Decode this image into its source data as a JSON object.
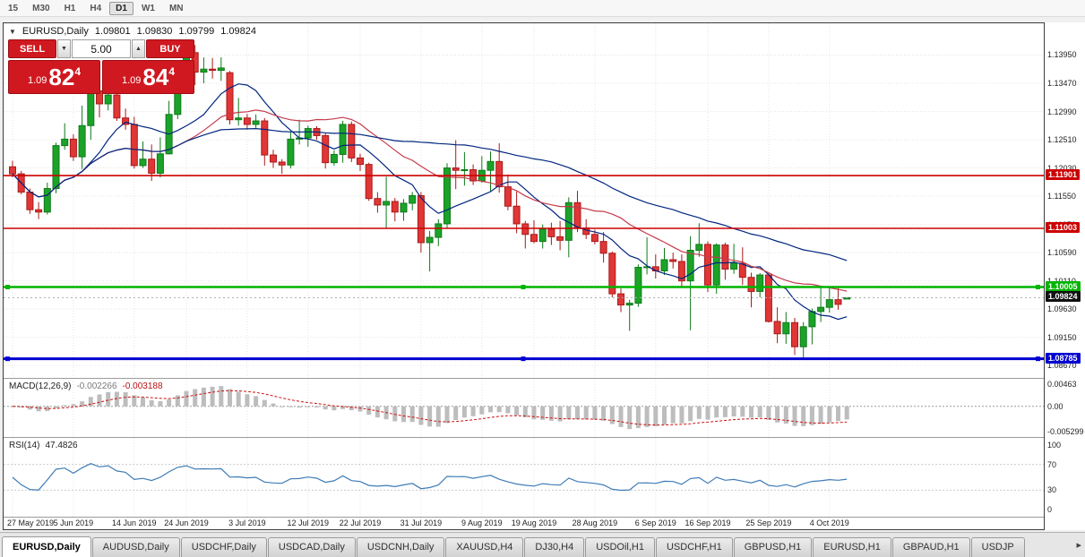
{
  "toolbar": {
    "timeframes": [
      "15",
      "M30",
      "H1",
      "H4",
      "D1",
      "W1",
      "MN"
    ],
    "active": "D1"
  },
  "header": {
    "icon": "▼",
    "symbol": "EURUSD,Daily",
    "open": "1.09801",
    "high": "1.09830",
    "low": "1.09799",
    "close": "1.09824"
  },
  "trade_panel": {
    "sell_label": "SELL",
    "buy_label": "BUY",
    "volume": "5.00",
    "spin_down": "▼",
    "spin_up": "▲",
    "sell_price": {
      "prefix": "1.09",
      "big": "82",
      "sup": "4"
    },
    "buy_price": {
      "prefix": "1.09",
      "big": "84",
      "sup": "4"
    }
  },
  "indicators": {
    "macd": {
      "label": "MACD(12,26,9)",
      "main": "-0.002266",
      "signal": "-0.003188"
    },
    "rsi": {
      "label": "RSI(14)",
      "value": "47.4826"
    }
  },
  "tabs": {
    "items": [
      "EURUSD,Daily",
      "AUDUSD,Daily",
      "USDCHF,Daily",
      "USDCAD,Daily",
      "USDCNH,Daily",
      "XAUUSD,H4",
      "DJ30,H4",
      "USDOil,H1",
      "USDCHF,H1",
      "GBPUSD,H1",
      "EURUSD,H1",
      "GBPAUD,H1",
      "USDJP"
    ],
    "active_index": 0,
    "scroll_arrow": "▸"
  },
  "chart_data": [
    {
      "type": "candlestick",
      "title": "EURUSD,Daily",
      "y_axis": {
        "max": 1.1449,
        "min": 1.0846,
        "ticks": [
          "1.13950",
          "1.13470",
          "1.12990",
          "1.12510",
          "1.12030",
          "1.11550",
          "1.11070",
          "1.10590",
          "1.10110",
          "1.09630",
          "1.09150",
          "1.08670"
        ]
      },
      "x_ticks": [
        {
          "label": "27 May 2019",
          "i": 0
        },
        {
          "label": "5 Jun 2019",
          "i": 7
        },
        {
          "label": "14 Jun 2019",
          "i": 14
        },
        {
          "label": "24 Jun 2019",
          "i": 20
        },
        {
          "label": "3 Jul 2019",
          "i": 27
        },
        {
          "label": "12 Jul 2019",
          "i": 34
        },
        {
          "label": "22 Jul 2019",
          "i": 40
        },
        {
          "label": "31 Jul 2019",
          "i": 47
        },
        {
          "label": "9 Aug 2019",
          "i": 54
        },
        {
          "label": "19 Aug 2019",
          "i": 60
        },
        {
          "label": "28 Aug 2019",
          "i": 67
        },
        {
          "label": "6 Sep 2019",
          "i": 74
        },
        {
          "label": "16 Sep 2019",
          "i": 80
        },
        {
          "label": "25 Sep 2019",
          "i": 87
        },
        {
          "label": "4 Oct 2019",
          "i": 94
        }
      ],
      "candles": [
        [
          1.1205,
          1.1215,
          1.1187,
          1.1193
        ],
        [
          1.1193,
          1.1198,
          1.1158,
          1.1162
        ],
        [
          1.1162,
          1.1168,
          1.1125,
          1.1132
        ],
        [
          1.1132,
          1.1145,
          1.1116,
          1.1128
        ],
        [
          1.1128,
          1.1178,
          1.1124,
          1.1168
        ],
        [
          1.1168,
          1.1246,
          1.116,
          1.1241
        ],
        [
          1.1241,
          1.1279,
          1.1234,
          1.1252
        ],
        [
          1.1252,
          1.126,
          1.1215,
          1.1222
        ],
        [
          1.1222,
          1.1309,
          1.1201,
          1.1275
        ],
        [
          1.1275,
          1.1348,
          1.1251,
          1.1334
        ],
        [
          1.1334,
          1.1335,
          1.1289,
          1.1312
        ],
        [
          1.1312,
          1.1338,
          1.1301,
          1.1327
        ],
        [
          1.1327,
          1.1344,
          1.1283,
          1.1288
        ],
        [
          1.1288,
          1.1304,
          1.1268,
          1.1277
        ],
        [
          1.1277,
          1.129,
          1.1202,
          1.1207
        ],
        [
          1.1207,
          1.1248,
          1.1203,
          1.1218
        ],
        [
          1.1218,
          1.1243,
          1.1181,
          1.1194
        ],
        [
          1.1194,
          1.1255,
          1.1187,
          1.1227
        ],
        [
          1.1227,
          1.1317,
          1.1226,
          1.1294
        ],
        [
          1.1294,
          1.1378,
          1.1286,
          1.1368
        ],
        [
          1.1368,
          1.1406,
          1.1362,
          1.1399
        ],
        [
          1.1399,
          1.1412,
          1.1344,
          1.1366
        ],
        [
          1.1366,
          1.1391,
          1.1347,
          1.1371
        ],
        [
          1.1371,
          1.139,
          1.1355,
          1.1369
        ],
        [
          1.1369,
          1.1391,
          1.1351,
          1.1373
        ],
        [
          1.1365,
          1.1368,
          1.1277,
          1.1285
        ],
        [
          1.1285,
          1.1322,
          1.1275,
          1.1288
        ],
        [
          1.1288,
          1.1295,
          1.1268,
          1.1277
        ],
        [
          1.1277,
          1.1294,
          1.1271,
          1.1283
        ],
        [
          1.1283,
          1.1288,
          1.1207,
          1.1225
        ],
        [
          1.1225,
          1.1234,
          1.1203,
          1.1213
        ],
        [
          1.1213,
          1.1218,
          1.1193,
          1.1208
        ],
        [
          1.1208,
          1.1264,
          1.1202,
          1.1252
        ],
        [
          1.1252,
          1.1285,
          1.1243,
          1.1254
        ],
        [
          1.1254,
          1.1275,
          1.1239,
          1.127
        ],
        [
          1.127,
          1.1274,
          1.1251,
          1.1258
        ],
        [
          1.1258,
          1.1262,
          1.1202,
          1.1212
        ],
        [
          1.1212,
          1.1233,
          1.1207,
          1.1226
        ],
        [
          1.1226,
          1.1283,
          1.1212,
          1.1277
        ],
        [
          1.1277,
          1.1282,
          1.1213,
          1.122
        ],
        [
          1.122,
          1.1227,
          1.1198,
          1.1209
        ],
        [
          1.1209,
          1.1212,
          1.1147,
          1.1151
        ],
        [
          1.1151,
          1.1162,
          1.1127,
          1.114
        ],
        [
          1.114,
          1.1188,
          1.1101,
          1.1146
        ],
        [
          1.1146,
          1.1152,
          1.1112,
          1.1128
        ],
        [
          1.1128,
          1.115,
          1.1113,
          1.1143
        ],
        [
          1.1143,
          1.1162,
          1.1131,
          1.1156
        ],
        [
          1.1156,
          1.1162,
          1.1059,
          1.1076
        ],
        [
          1.1076,
          1.1096,
          1.1027,
          1.1085
        ],
        [
          1.1085,
          1.1116,
          1.107,
          1.1108
        ],
        [
          1.1108,
          1.1211,
          1.1101,
          1.1203
        ],
        [
          1.1203,
          1.125,
          1.1167,
          1.1199
        ],
        [
          1.1199,
          1.123,
          1.1173,
          1.12
        ],
        [
          1.12,
          1.1209,
          1.1174,
          1.1181
        ],
        [
          1.1181,
          1.1223,
          1.1178,
          1.1199
        ],
        [
          1.1199,
          1.1231,
          1.1162,
          1.1214
        ],
        [
          1.1214,
          1.1245,
          1.1161,
          1.1171
        ],
        [
          1.1171,
          1.1192,
          1.1131,
          1.1138
        ],
        [
          1.1138,
          1.1163,
          1.1092,
          1.1108
        ],
        [
          1.1108,
          1.1113,
          1.1066,
          1.109
        ],
        [
          1.109,
          1.1114,
          1.1075,
          1.1078
        ],
        [
          1.1078,
          1.1107,
          1.1066,
          1.1099
        ],
        [
          1.1099,
          1.111,
          1.1072,
          1.1086
        ],
        [
          1.1086,
          1.1113,
          1.1063,
          1.108
        ],
        [
          1.108,
          1.1153,
          1.1051,
          1.1144
        ],
        [
          1.1144,
          1.1164,
          1.1094,
          1.1101
        ],
        [
          1.1101,
          1.1116,
          1.1082,
          1.109
        ],
        [
          1.109,
          1.1098,
          1.1073,
          1.1078
        ],
        [
          1.1078,
          1.1094,
          1.1042,
          1.1058
        ],
        [
          1.1058,
          1.1061,
          1.0983,
          1.0989
        ],
        [
          1.0989,
          1.0998,
          1.0958,
          1.097
        ],
        [
          1.097,
          1.0979,
          1.0926,
          1.0973
        ],
        [
          1.0973,
          1.1039,
          1.0967,
          1.1034
        ],
        [
          1.1034,
          1.1085,
          1.1022,
          1.1035
        ],
        [
          1.1035,
          1.1056,
          1.1015,
          1.1028
        ],
        [
          1.1028,
          1.1067,
          1.1021,
          1.1047
        ],
        [
          1.1047,
          1.1059,
          1.1032,
          1.1044
        ],
        [
          1.1044,
          1.1056,
          1.0999,
          1.1011
        ],
        [
          1.1011,
          1.1087,
          1.0927,
          1.1063
        ],
        [
          1.1063,
          1.1109,
          1.1052,
          1.1073
        ],
        [
          1.1073,
          1.1078,
          1.0992,
          1.1004
        ],
        [
          1.1004,
          1.1075,
          1.0989,
          1.1072
        ],
        [
          1.1072,
          1.1076,
          1.1013,
          1.1031
        ],
        [
          1.1031,
          1.1074,
          1.1023,
          1.1041
        ],
        [
          1.1041,
          1.1068,
          1.1004,
          1.1017
        ],
        [
          1.1017,
          1.1025,
          1.0966,
          1.0993
        ],
        [
          1.0993,
          1.1024,
          1.0983,
          1.1021
        ],
        [
          1.1021,
          1.1024,
          1.094,
          1.0942
        ],
        [
          1.0942,
          1.0966,
          1.0905,
          1.0921
        ],
        [
          1.0921,
          1.0958,
          1.0904,
          1.094
        ],
        [
          1.094,
          1.0948,
          1.0885,
          1.0899
        ],
        [
          1.0899,
          1.0941,
          1.0879,
          1.0933
        ],
        [
          1.0933,
          1.0964,
          1.0903,
          1.0959
        ],
        [
          1.0959,
          1.0999,
          1.0941,
          1.0966
        ],
        [
          1.0966,
          1.0999,
          1.0957,
          1.0979
        ],
        [
          1.0979,
          1.1,
          1.0962,
          1.0971
        ],
        [
          1.09801,
          1.0983,
          1.09799,
          1.09824
        ]
      ],
      "overlays": {
        "moving_averages": [
          {
            "period": 9,
            "color": "#00257f"
          },
          {
            "period": 21,
            "color": "#c43a4b"
          },
          {
            "period": 45,
            "color": "#00257f"
          }
        ],
        "hlines": [
          {
            "price": 1.11901,
            "label": "1.11901",
            "color": "#cc0000",
            "width": 1.6,
            "handles": false
          },
          {
            "price": 1.11003,
            "label": "1.11003",
            "color": "#cc0000",
            "width": 1.6,
            "handles": false
          },
          {
            "price": 1.10005,
            "label": "1.10005",
            "color": "#00b400",
            "width": 2.5,
            "handles": true
          },
          {
            "price": 1.08785,
            "label": "1.08785",
            "color": "#0000d0",
            "width": 3,
            "handles": true
          }
        ],
        "current_price": {
          "price": 1.09824,
          "label": "1.09824",
          "label_bg": "#111111"
        }
      },
      "colors": {
        "up": "#1ba329",
        "up_border": "#0e7a19",
        "down": "#e03636",
        "down_border": "#aa1a1a",
        "grid": "#e4e4e4"
      }
    },
    {
      "type": "bar",
      "name": "MACD",
      "fast": 12,
      "slow": 26,
      "signal": 9,
      "axis": {
        "max": 0.00463,
        "min": -0.005299,
        "ticks": [
          {
            "label": "0.00463",
            "v": 0.00463
          },
          {
            "label": "0.00",
            "v": 0
          },
          {
            "label": "-0.005299",
            "v": -0.005299
          }
        ]
      },
      "bar_color": "#bdbdbd",
      "signal_color": "#cc1111"
    },
    {
      "type": "line",
      "name": "RSI",
      "period": 14,
      "axis": {
        "ticks": [
          {
            "label": "100",
            "v": 100
          },
          {
            "label": "70",
            "v": 70
          },
          {
            "label": "30",
            "v": 30
          },
          {
            "label": "0",
            "v": 0
          }
        ]
      },
      "levels": [
        70,
        30
      ],
      "line_color": "#3f7cb6"
    }
  ]
}
